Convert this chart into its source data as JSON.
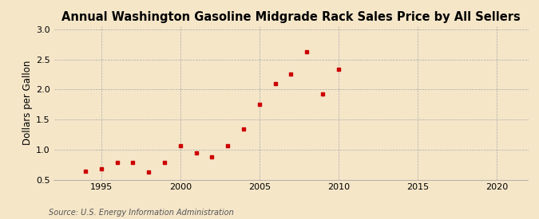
{
  "title": "Annual Washington Gasoline Midgrade Rack Sales Price by All Sellers",
  "ylabel": "Dollars per Gallon",
  "source": "Source: U.S. Energy Information Administration",
  "background_color": "#f5e6c8",
  "years": [
    1994,
    1995,
    1996,
    1997,
    1998,
    1999,
    2000,
    2001,
    2002,
    2003,
    2004,
    2005,
    2006,
    2007,
    2008,
    2009,
    2010
  ],
  "values": [
    0.64,
    0.68,
    0.79,
    0.79,
    0.62,
    0.78,
    1.06,
    0.94,
    0.88,
    1.06,
    1.34,
    1.75,
    2.09,
    2.26,
    2.63,
    1.93,
    2.33
  ],
  "point_color": "#cc0000",
  "xlim": [
    1992,
    2022
  ],
  "ylim": [
    0.5,
    3.05
  ],
  "xticks": [
    1995,
    2000,
    2005,
    2010,
    2015,
    2020
  ],
  "yticks": [
    0.5,
    1.0,
    1.5,
    2.0,
    2.5,
    3.0
  ],
  "title_fontsize": 10.5,
  "label_fontsize": 8.5,
  "tick_fontsize": 8,
  "source_fontsize": 7
}
